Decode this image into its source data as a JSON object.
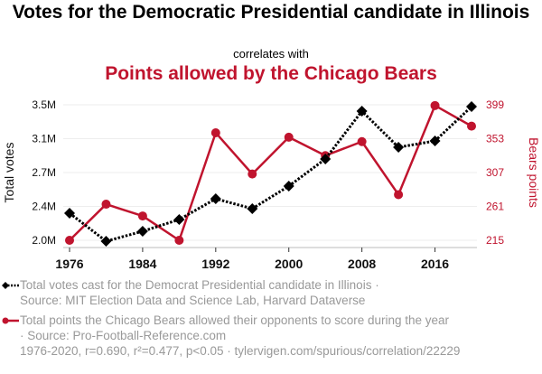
{
  "chart_data": {
    "type": "line",
    "title": "Votes for the Democratic Presidential candidate in Illinois",
    "subtitle": "correlates with",
    "title2": "Points allowed by the Chicago Bears",
    "x": [
      1976,
      1980,
      1984,
      1988,
      1992,
      1996,
      2000,
      2004,
      2008,
      2012,
      2016,
      2020
    ],
    "x_ticks": [
      "1976",
      "1984",
      "1992",
      "2000",
      "2008",
      "2016"
    ],
    "x_tick_values": [
      1976,
      1984,
      1992,
      2000,
      2008,
      2016
    ],
    "xlim": [
      1976,
      2020
    ],
    "grid": true,
    "series": [
      {
        "name": "Total votes cast for the Democrat Presidential candidate in Illinois",
        "axis": "left",
        "color": "#000000",
        "style": "dotted",
        "marker": "diamond",
        "values": [
          2.29,
          1.98,
          2.09,
          2.22,
          2.45,
          2.34,
          2.59,
          2.89,
          3.42,
          3.02,
          3.09,
          3.47
        ]
      },
      {
        "name": "Total points the Chicago Bears allowed their opponents to score during the year",
        "axis": "right",
        "color": "#c0142e",
        "style": "solid",
        "marker": "circle",
        "values": [
          215,
          264,
          248,
          215,
          361,
          305,
          355,
          330,
          349,
          277,
          398,
          370
        ]
      }
    ],
    "y_left": {
      "label": "Total votes",
      "ticks": [
        "2.0M",
        "2.4M",
        "2.7M",
        "3.1M",
        "3.5M"
      ],
      "ylim": [
        1.99,
        3.49
      ]
    },
    "y_right": {
      "label": "Bears points",
      "ticks": [
        "215",
        "261",
        "307",
        "353",
        "399"
      ],
      "ylim": [
        215,
        399
      ]
    },
    "legend_placement": "bottom"
  },
  "legend": {
    "item1_line1": "Total votes cast for the Democrat Presidential candidate in Illinois ·",
    "item1_line2": "Source: MIT Election Data and Science Lab, Harvard Dataverse",
    "item2_line1": "Total points the Chicago Bears allowed their opponents to score during the year",
    "item2_line2": "· Source: Pro-Football-Reference.com"
  },
  "footer": "1976-2020, r=0.690, r²=0.477, p<0.05 · tylervigen.com/spurious/correlation/22229",
  "colors": {
    "votes": "#000000",
    "bears": "#c0142e",
    "grid": "#eeeeee",
    "muted": "#999999"
  }
}
